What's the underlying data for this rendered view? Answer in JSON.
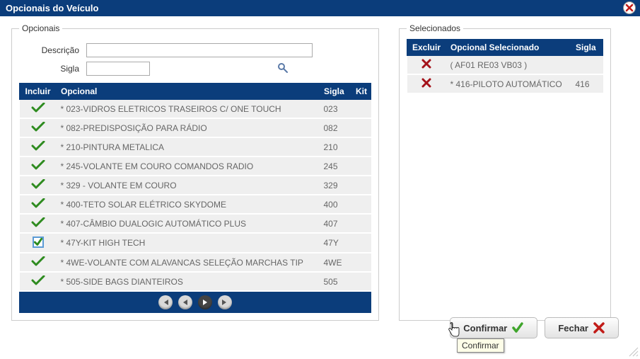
{
  "title": "Opcionais do Veículo",
  "panels": {
    "left": "Opcionais",
    "right": "Selecionados"
  },
  "form": {
    "descricao_label": "Descrição",
    "sigla_label": "Sigla",
    "descricao_val": "",
    "sigla_val": ""
  },
  "left_headers": {
    "incluir": "Incluir",
    "opcional": "Opcional",
    "sigla": "Sigla",
    "kit": "Kit"
  },
  "options": [
    {
      "label": "* 023-VIDROS ELETRICOS TRASEIROS C/ ONE TOUCH",
      "sigla": "023",
      "state": "check"
    },
    {
      "label": "* 082-PREDISPOSIÇÃO PARA RÁDIO",
      "sigla": "082",
      "state": "check"
    },
    {
      "label": "* 210-PINTURA METALICA",
      "sigla": "210",
      "state": "check"
    },
    {
      "label": "* 245-VOLANTE EM COURO COMANDOS RADIO",
      "sigla": "245",
      "state": "check"
    },
    {
      "label": "* 329 - VOLANTE EM COURO",
      "sigla": "329",
      "state": "check"
    },
    {
      "label": "* 400-TETO SOLAR ELÉTRICO SKYDOME",
      "sigla": "400",
      "state": "check"
    },
    {
      "label": "* 407-CÂMBIO DUALOGIC AUTOMÁTICO PLUS",
      "sigla": "407",
      "state": "check"
    },
    {
      "label": "* 47Y-KIT HIGH TECH",
      "sigla": "47Y",
      "state": "box"
    },
    {
      "label": "* 4WE-VOLANTE COM ALAVANCAS SELEÇÃO MARCHAS TIP",
      "sigla": "4WE",
      "state": "check"
    },
    {
      "label": "* 505-SIDE BAGS DIANTEIROS",
      "sigla": "505",
      "state": "check"
    }
  ],
  "right_headers": {
    "excluir": "Excluir",
    "opcional": "Opcional Selecionado",
    "sigla": "Sigla"
  },
  "selected": [
    {
      "label": "( AF01 RE03 VB03 )",
      "sigla": ""
    },
    {
      "label": "* 416-PILOTO AUTOMÁTICO",
      "sigla": "416"
    }
  ],
  "buttons": {
    "confirmar": "Confirmar",
    "fechar": "Fechar"
  },
  "tooltip": "Confirmar",
  "colors": {
    "header_bg": "#0b3d7b",
    "check_green": "#2e8b1f",
    "x_red": "#c11b17"
  }
}
